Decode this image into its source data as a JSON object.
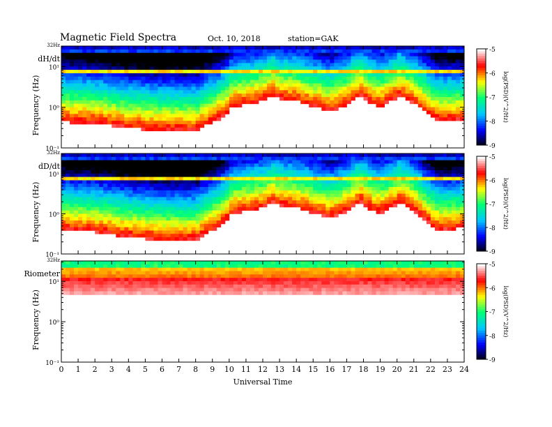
{
  "header": {
    "title": "Magnetic  Field  Spectra",
    "date": "Oct. 10, 2018",
    "station": "station=GAK"
  },
  "colorbar": {
    "label": "log(PSD)(V^2/Hz)",
    "ticks": [
      "-5",
      "-6",
      "-7",
      "-8",
      "-9"
    ],
    "colormap": [
      "#000000",
      "#0000ff",
      "#00c8ff",
      "#00ff78",
      "#ffff00",
      "#ff0000",
      "#ffffff"
    ]
  },
  "chart_data": [
    {
      "type": "heatmap",
      "panel_label": "dH/dt",
      "ylabel": "Frequency  (Hz)",
      "xlabel": "",
      "top_label": "32Hz",
      "yticks": [
        "10¹",
        "10⁰",
        "10⁻¹"
      ],
      "xlim": [
        0,
        24
      ],
      "ylim_hz": [
        0.1,
        32
      ],
      "scale": "log",
      "value_range": [
        -9,
        -5
      ],
      "cutoff_hz": [
        [
          0,
          0.5
        ],
        [
          2,
          0.45
        ],
        [
          4,
          0.35
        ],
        [
          6,
          0.3
        ],
        [
          8,
          0.3
        ],
        [
          9.8,
          0.7
        ],
        [
          10.2,
          1.2
        ],
        [
          11,
          1.3
        ],
        [
          12,
          1.6
        ],
        [
          12.6,
          2.2
        ],
        [
          13,
          1.8
        ],
        [
          14,
          1.6
        ],
        [
          15,
          1.2
        ],
        [
          16,
          0.9
        ],
        [
          17,
          1.3
        ],
        [
          17.8,
          2.3
        ],
        [
          18.5,
          1.4
        ],
        [
          19,
          1.2
        ],
        [
          19.5,
          1.5
        ],
        [
          20.2,
          2.2
        ],
        [
          21,
          1.4
        ],
        [
          22,
          0.7
        ],
        [
          22.5,
          0.5
        ],
        [
          24,
          0.55
        ]
      ]
    },
    {
      "type": "heatmap",
      "panel_label": "dD/dt",
      "ylabel": "Frequency  (Hz)",
      "xlabel": "",
      "top_label": "32Hz",
      "yticks": [
        "10¹",
        "10⁰",
        "10⁻¹"
      ],
      "xlim": [
        0,
        24
      ],
      "ylim_hz": [
        0.1,
        32
      ],
      "scale": "log",
      "value_range": [
        -9,
        -5
      ],
      "cutoff_hz": [
        [
          0,
          0.45
        ],
        [
          2,
          0.4
        ],
        [
          4,
          0.3
        ],
        [
          6,
          0.25
        ],
        [
          8,
          0.25
        ],
        [
          9.8,
          0.7
        ],
        [
          10.2,
          1.2
        ],
        [
          11,
          1.3
        ],
        [
          12,
          1.6
        ],
        [
          12.6,
          2.2
        ],
        [
          13,
          1.8
        ],
        [
          14,
          1.6
        ],
        [
          15,
          1.2
        ],
        [
          16,
          0.9
        ],
        [
          17,
          1.3
        ],
        [
          17.8,
          2.3
        ],
        [
          18.5,
          1.4
        ],
        [
          19,
          1.2
        ],
        [
          19.5,
          1.5
        ],
        [
          20.2,
          2.2
        ],
        [
          21,
          1.4
        ],
        [
          22,
          0.6
        ],
        [
          22.5,
          0.45
        ],
        [
          24,
          0.5
        ]
      ]
    },
    {
      "type": "heatmap",
      "panel_label": "Riometer",
      "ylabel": "Frequency  (Hz)",
      "xlabel": "Universal  Time",
      "top_label": "32Hz",
      "yticks": [
        "10¹",
        "10⁰",
        "10⁻¹"
      ],
      "xticks": [
        "0",
        "1",
        "2",
        "3",
        "4",
        "5",
        "6",
        "7",
        "8",
        "9",
        "10",
        "11",
        "12",
        "13",
        "14",
        "15",
        "16",
        "17",
        "18",
        "19",
        "20",
        "21",
        "22",
        "23",
        "24"
      ],
      "xlim": [
        0,
        24
      ],
      "ylim_hz": [
        0.1,
        32
      ],
      "scale": "log",
      "value_range": [
        -9,
        -5
      ],
      "cutoff_hz": [
        [
          0,
          8
        ],
        [
          24,
          8
        ]
      ]
    }
  ]
}
